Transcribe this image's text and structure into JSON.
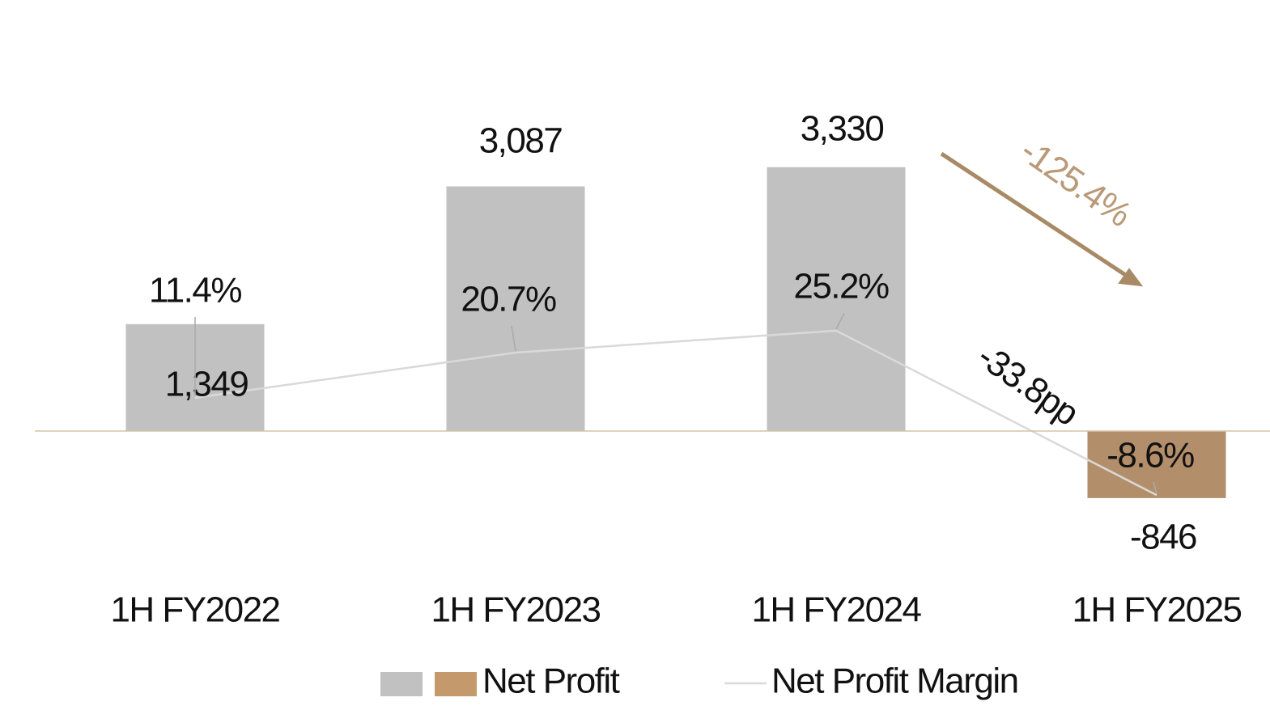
{
  "chart_data": {
    "type": "bar",
    "categories": [
      "1H FY2022",
      "1H FY2023",
      "1H FY2024",
      "1H FY2025"
    ],
    "series": [
      {
        "name": "Net Profit",
        "colors": [
          "#c0c1c0",
          "#c0c1c0",
          "#c0c1c0",
          "#b38e6a"
        ],
        "legend_colors": [
          "#c0c1c0",
          "#c49a6c"
        ],
        "values": [
          1349,
          3087,
          3330,
          -846
        ],
        "value_labels": [
          "1,349",
          "3,087",
          "3,330",
          "-846"
        ]
      },
      {
        "name": "Net Profit Margin",
        "type": "line",
        "axis": "y2",
        "color": "#d9d9d9",
        "values": [
          11.4,
          20.7,
          25.2,
          -8.6
        ],
        "value_labels": [
          "11.4%",
          "20.7%",
          "25.2%",
          "-8.6%"
        ]
      }
    ],
    "ylim": [
      -2000,
      5000
    ],
    "y2lim": [
      -28,
      86
    ],
    "baseline_color": "#d6c3a8",
    "annotations": [
      {
        "text": "-125.4%",
        "color": "#b99a78",
        "arrow_color": "#a88a66"
      },
      {
        "text": "-33.8pp",
        "color": "#111111"
      }
    ]
  }
}
